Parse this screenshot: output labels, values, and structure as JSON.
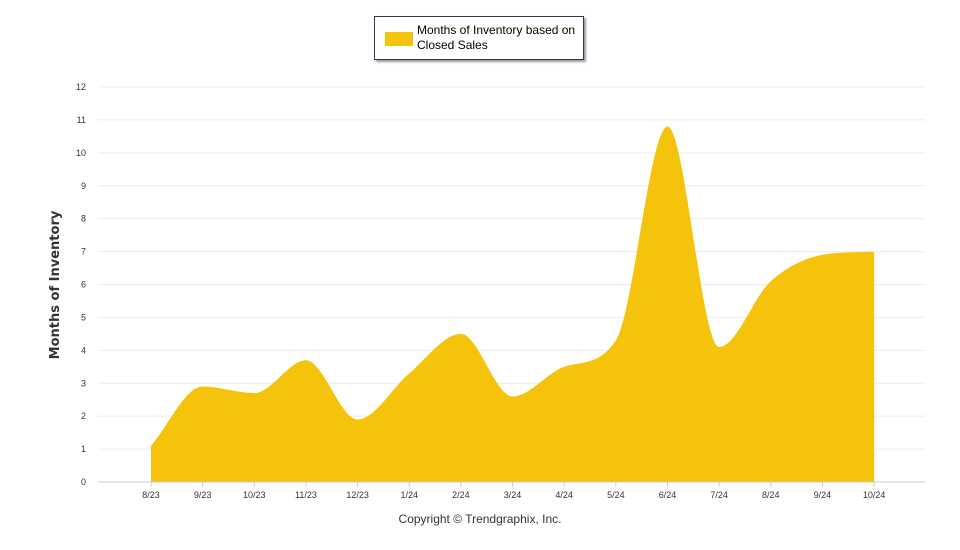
{
  "chart_data": {
    "type": "area",
    "title": "",
    "xlabel": "",
    "ylabel": "Months of Inventory",
    "ylim": [
      0,
      12
    ],
    "yticks": [
      "0",
      "1",
      "2",
      "3",
      "4",
      "5",
      "6",
      "7",
      "8",
      "9",
      "10",
      "11",
      "12"
    ],
    "categories": [
      "8/23",
      "9/23",
      "10/23",
      "11/23",
      "12/23",
      "1/24",
      "2/24",
      "3/24",
      "4/24",
      "5/24",
      "6/24",
      "7/24",
      "8/24",
      "9/24",
      "10/24"
    ],
    "series": [
      {
        "name": "Months of Inventory based on Closed Sales",
        "color": "#f5c30c",
        "values": [
          1.1,
          2.9,
          2.7,
          3.7,
          1.9,
          3.3,
          4.5,
          2.6,
          3.5,
          4.3,
          10.8,
          4.1,
          6.1,
          6.9,
          7.0
        ]
      }
    ],
    "legend_position": "top-center",
    "grid": true
  },
  "legend": {
    "label": "Months of Inventory based on Closed Sales"
  },
  "footer": {
    "copyright": "Copyright © Trendgraphix, Inc."
  }
}
